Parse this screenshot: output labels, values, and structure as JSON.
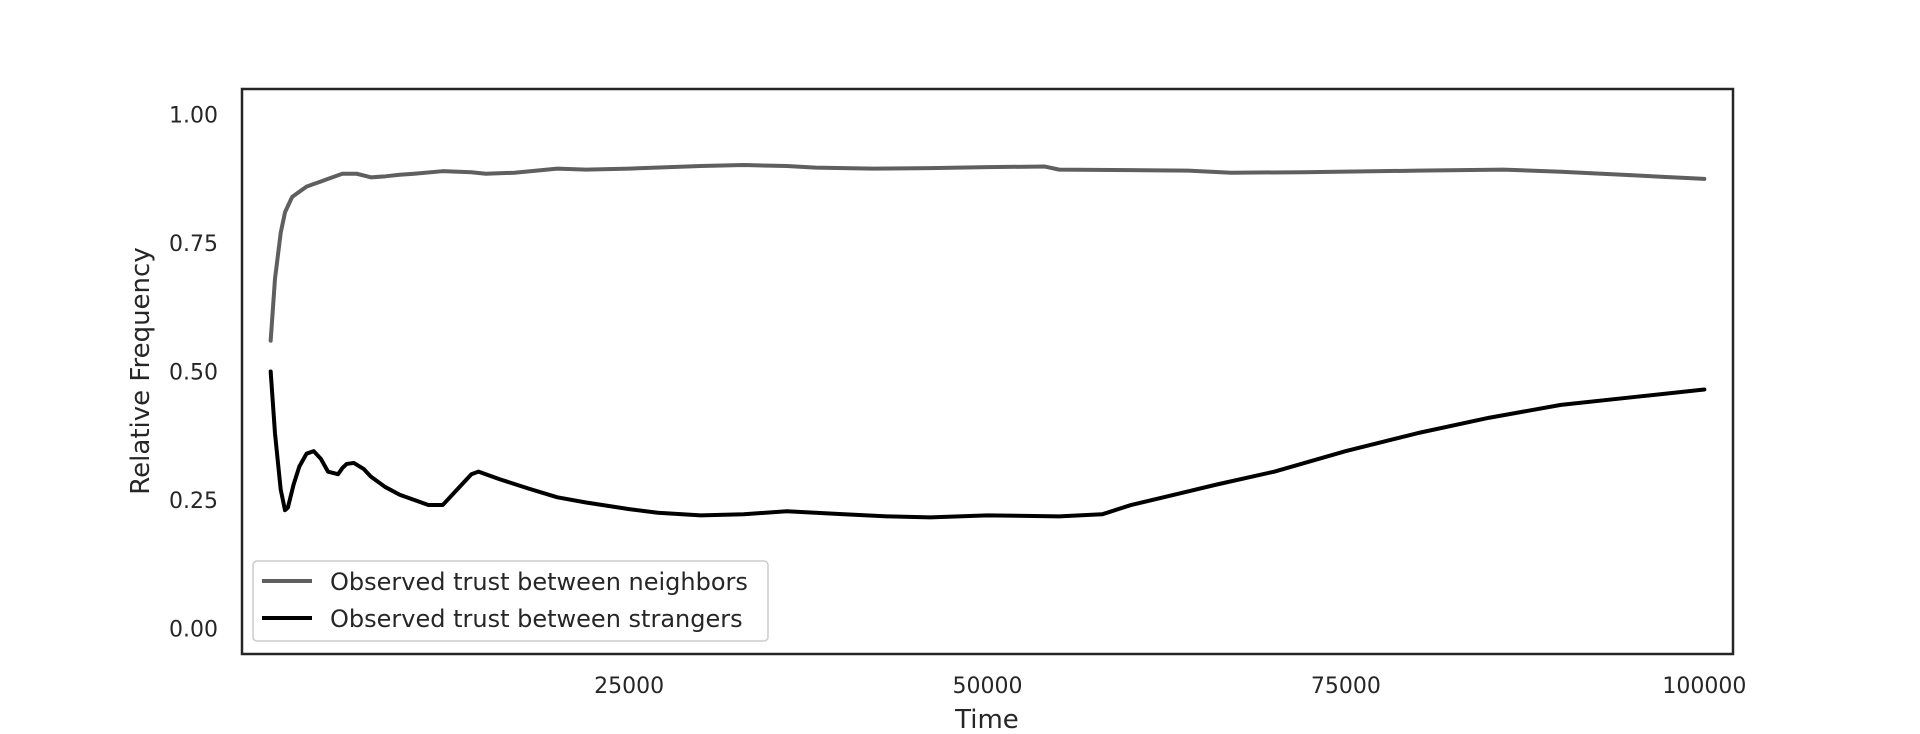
{
  "chart_data": {
    "type": "line",
    "xlabel": "Time",
    "ylabel": "Relative Frequency",
    "xlim": [
      -2000,
      102000
    ],
    "ylim": [
      -0.05,
      1.05
    ],
    "xticks": [
      25000,
      50000,
      75000,
      100000
    ],
    "xtick_labels": [
      "25000",
      "50000",
      "75000",
      "100000"
    ],
    "yticks": [
      0.0,
      0.25,
      0.5,
      0.75,
      1.0
    ],
    "ytick_labels": [
      "0.00",
      "0.25",
      "0.50",
      "0.75",
      "1.00"
    ],
    "grid": false,
    "legend_position": "lower-left",
    "series": [
      {
        "name": "Observed trust between neighbors",
        "color": "#5f5f5f",
        "x": [
          0,
          300,
          700,
          1000,
          1500,
          2000,
          2500,
          3000,
          3500,
          4000,
          5000,
          6000,
          7000,
          8000,
          9000,
          10000,
          12000,
          14000,
          15000,
          17000,
          20000,
          22000,
          25000,
          30000,
          33000,
          36000,
          38000,
          42000,
          46000,
          50000,
          54000,
          55000,
          60000,
          64000,
          67000,
          72000,
          80000,
          86000,
          90000,
          95000,
          100000
        ],
        "y": [
          0.56,
          0.68,
          0.77,
          0.81,
          0.84,
          0.85,
          0.86,
          0.865,
          0.87,
          0.875,
          0.885,
          0.885,
          0.878,
          0.88,
          0.883,
          0.885,
          0.89,
          0.888,
          0.885,
          0.887,
          0.895,
          0.893,
          0.895,
          0.9,
          0.902,
          0.9,
          0.897,
          0.895,
          0.896,
          0.898,
          0.899,
          0.893,
          0.892,
          0.891,
          0.887,
          0.888,
          0.891,
          0.893,
          0.889,
          0.882,
          0.875
        ]
      },
      {
        "name": "Observed trust between strangers",
        "color": "#000000",
        "x": [
          0,
          300,
          700,
          1000,
          1200,
          1600,
          2000,
          2500,
          3000,
          3500,
          4000,
          4700,
          5000,
          5300,
          5800,
          6500,
          7000,
          8000,
          9000,
          10000,
          11000,
          12000,
          13000,
          14000,
          14500,
          15000,
          16000,
          18000,
          20000,
          22000,
          25000,
          27000,
          30000,
          33000,
          36000,
          40000,
          43000,
          46000,
          50000,
          55000,
          58000,
          60000,
          63000,
          66000,
          70000,
          75000,
          80000,
          85000,
          90000,
          95000,
          100000
        ],
        "y": [
          0.5,
          0.38,
          0.27,
          0.23,
          0.235,
          0.28,
          0.315,
          0.34,
          0.345,
          0.33,
          0.305,
          0.3,
          0.312,
          0.32,
          0.322,
          0.31,
          0.295,
          0.275,
          0.26,
          0.25,
          0.24,
          0.24,
          0.27,
          0.3,
          0.305,
          0.3,
          0.29,
          0.272,
          0.255,
          0.245,
          0.232,
          0.225,
          0.22,
          0.222,
          0.228,
          0.222,
          0.218,
          0.216,
          0.22,
          0.218,
          0.222,
          0.24,
          0.26,
          0.28,
          0.305,
          0.345,
          0.38,
          0.41,
          0.435,
          0.45,
          0.465
        ]
      }
    ]
  }
}
